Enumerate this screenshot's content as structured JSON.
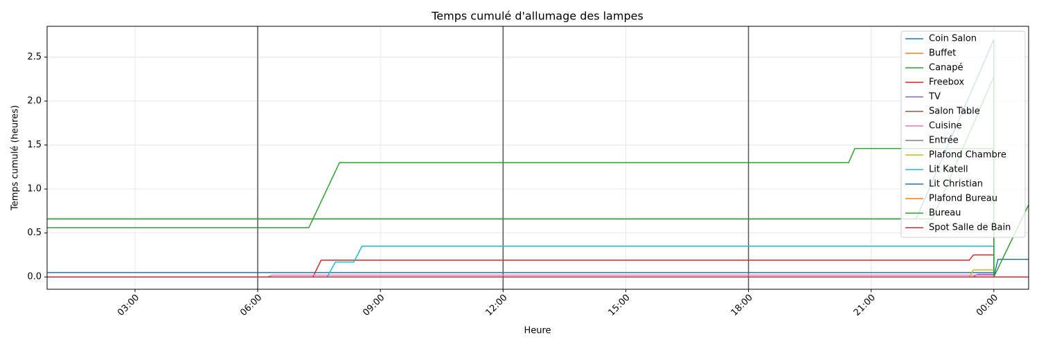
{
  "chart_data": {
    "type": "line",
    "title": "Temps cumulé d'allumage des lampes",
    "x_label": "Heure",
    "y_label": "Temps cumulé (heures)",
    "xlim": [
      0.85,
      24.85
    ],
    "ylim": [
      -0.14,
      2.85
    ],
    "xticks": [
      {
        "value": 3,
        "label": "03:00"
      },
      {
        "value": 6,
        "label": "06:00"
      },
      {
        "value": 9,
        "label": "09:00"
      },
      {
        "value": 12,
        "label": "12:00"
      },
      {
        "value": 15,
        "label": "15:00"
      },
      {
        "value": 18,
        "label": "18:00"
      },
      {
        "value": 21,
        "label": "21:00"
      },
      {
        "value": 24,
        "label": "00:00"
      }
    ],
    "yticks": [
      {
        "value": 0,
        "label": "0.0"
      },
      {
        "value": 0.5,
        "label": "0.5"
      },
      {
        "value": 1,
        "label": "1.0"
      },
      {
        "value": 1.5,
        "label": "1.5"
      },
      {
        "value": 2,
        "label": "2.0"
      },
      {
        "value": 2.5,
        "label": "2.5"
      }
    ],
    "vlines": [
      6,
      12,
      18
    ],
    "grid": true,
    "legend": "upper right",
    "series": [
      {
        "name": "Coin Salon",
        "color": "#1f77b4",
        "x": [
          0.85,
          24,
          24,
          24.1,
          24.85
        ],
        "values": [
          0.05,
          0.05,
          0,
          0.2,
          0.2
        ]
      },
      {
        "name": "Buffet",
        "color": "#ff7f0e",
        "x": [
          0.85,
          24.85
        ],
        "values": [
          0,
          0
        ]
      },
      {
        "name": "Canapé",
        "color": "#2ca02c",
        "x": [
          0.85,
          7.25,
          8.0,
          20.45,
          20.6,
          24,
          24,
          24.85
        ],
        "values": [
          0.56,
          0.56,
          1.3,
          1.3,
          1.46,
          1.46,
          0,
          0.82
        ]
      },
      {
        "name": "Freebox",
        "color": "#d62728",
        "x": [
          0.85,
          7.35,
          7.55,
          23.4,
          23.5,
          24,
          24,
          24.85
        ],
        "values": [
          0,
          0,
          0.19,
          0.19,
          0.25,
          0.25,
          0,
          0
        ]
      },
      {
        "name": "TV",
        "color": "#9467bd",
        "x": [
          0.85,
          23.5,
          23.6,
          24,
          24,
          24.85
        ],
        "values": [
          0,
          0,
          0.03,
          0.03,
          0,
          0
        ]
      },
      {
        "name": "Salon Table",
        "color": "#8c564b",
        "x": [
          0.85,
          24.85
        ],
        "values": [
          0,
          0
        ]
      },
      {
        "name": "Cuisine",
        "color": "#e377c2",
        "x": [
          0.85,
          6.25,
          6.35,
          24,
          24,
          24.85
        ],
        "values": [
          0,
          0,
          0.02,
          0.02,
          0,
          0
        ]
      },
      {
        "name": "Entrée",
        "color": "#7f7f7f",
        "x": [
          0.85,
          24.85
        ],
        "values": [
          0,
          0
        ]
      },
      {
        "name": "Plafond Chambre",
        "color": "#bcbd22",
        "x": [
          0.85,
          23.4,
          23.5,
          24,
          24,
          24.85
        ],
        "values": [
          0,
          0,
          0.08,
          0.08,
          0,
          0
        ]
      },
      {
        "name": "Lit Katell",
        "color": "#17becf",
        "x": [
          0.85,
          7.7,
          7.9,
          8.35,
          8.55,
          24,
          24,
          24.85
        ],
        "values": [
          0,
          0,
          0.17,
          0.17,
          0.35,
          0.35,
          0,
          0
        ]
      },
      {
        "name": "Lit Christian",
        "color": "#1f77b4",
        "x": [
          0.85,
          22.1,
          24,
          24,
          24.85
        ],
        "values": [
          0.66,
          0.66,
          2.7,
          0,
          0
        ]
      },
      {
        "name": "Plafond Bureau",
        "color": "#ff7f0e",
        "x": [
          0.85,
          24.85
        ],
        "values": [
          0,
          0
        ]
      },
      {
        "name": "Bureau",
        "color": "#2ca02c",
        "x": [
          0.85,
          22.5,
          24,
          24,
          24.85
        ],
        "values": [
          0.66,
          0.66,
          2.28,
          0,
          0
        ]
      },
      {
        "name": "Spot Salle de Bain",
        "color": "#d62728",
        "x": [
          0.85,
          24.85
        ],
        "values": [
          0,
          0
        ]
      }
    ]
  }
}
